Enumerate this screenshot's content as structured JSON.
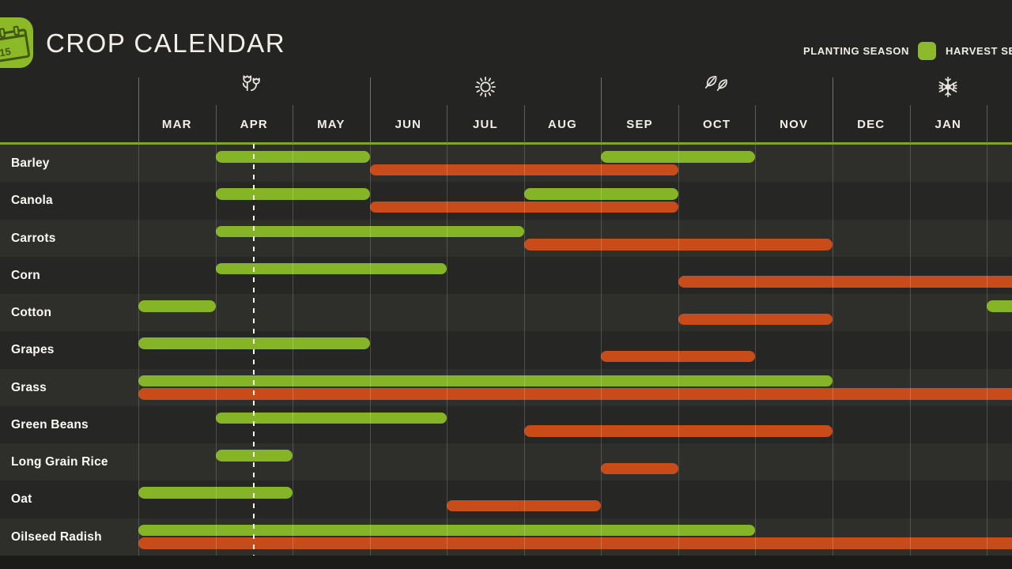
{
  "header": {
    "title": "CROP CALENDAR",
    "calendar_icon": {
      "name": "calendar-icon",
      "day": "15"
    }
  },
  "legend": {
    "planting": {
      "label": "PLANTING SEASON",
      "color": "#8cba2b"
    },
    "harvest": {
      "label": "HARVEST SEASON",
      "color": "#c8501d"
    }
  },
  "timeline": {
    "months": [
      "MAR",
      "APR",
      "MAY",
      "JUN",
      "JUL",
      "AUG",
      "SEP",
      "OCT",
      "NOV",
      "DEC",
      "JAN"
    ],
    "seasons": [
      {
        "name": "spring",
        "icon": "flowers-icon"
      },
      {
        "name": "summer",
        "icon": "sun-icon"
      },
      {
        "name": "autumn",
        "icon": "leaves-icon"
      },
      {
        "name": "winter",
        "icon": "snowflake-icon"
      }
    ],
    "today_month_position": 1.5
  },
  "chart_data": {
    "type": "gantt",
    "title": "CROP CALENDAR",
    "month_origin": "MAR",
    "unit": "month index from March; spans are [start, end) in months",
    "series_colors": {
      "planting": "#85b526",
      "harvest": "#c74c1a"
    },
    "rows": [
      {
        "crop": "Barley",
        "planting": [
          [
            1,
            3
          ],
          [
            6,
            8
          ]
        ],
        "harvest": [
          [
            3,
            7
          ]
        ]
      },
      {
        "crop": "Canola",
        "planting": [
          [
            1,
            3
          ],
          [
            5,
            7
          ]
        ],
        "harvest": [
          [
            3,
            7
          ]
        ]
      },
      {
        "crop": "Carrots",
        "planting": [
          [
            1,
            5
          ]
        ],
        "harvest": [
          [
            5,
            9
          ]
        ]
      },
      {
        "crop": "Corn",
        "planting": [
          [
            1,
            4
          ]
        ],
        "harvest": [
          [
            7,
            12
          ]
        ]
      },
      {
        "crop": "Cotton",
        "planting": [
          [
            0,
            1
          ],
          [
            11,
            12
          ]
        ],
        "harvest": [
          [
            7,
            9
          ]
        ]
      },
      {
        "crop": "Grapes",
        "planting": [
          [
            0,
            3
          ]
        ],
        "harvest": [
          [
            6,
            8
          ]
        ]
      },
      {
        "crop": "Grass",
        "planting": [
          [
            0,
            9
          ]
        ],
        "harvest": [
          [
            0,
            12
          ]
        ]
      },
      {
        "crop": "Green Beans",
        "planting": [
          [
            1,
            4
          ]
        ],
        "harvest": [
          [
            5,
            9
          ]
        ]
      },
      {
        "crop": "Long Grain Rice",
        "planting": [
          [
            1,
            2
          ]
        ],
        "harvest": [
          [
            6,
            7
          ]
        ]
      },
      {
        "crop": "Oat",
        "planting": [
          [
            0,
            2
          ]
        ],
        "harvest": [
          [
            4,
            6
          ]
        ]
      },
      {
        "crop": "Oilseed Radish",
        "planting": [
          [
            0,
            8
          ]
        ],
        "harvest": [
          [
            0,
            12
          ]
        ]
      }
    ]
  }
}
